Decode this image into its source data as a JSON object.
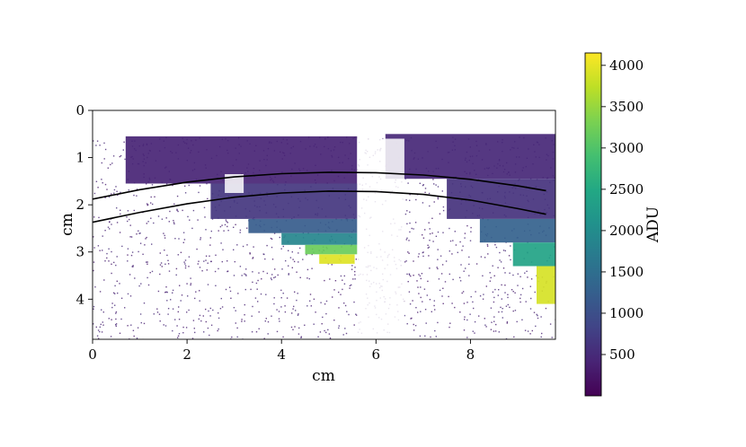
{
  "chart_data": {
    "type": "heatmap",
    "title": "",
    "xlabel": "cm",
    "ylabel": "cm",
    "xlim": [
      0,
      9.8
    ],
    "ylim": [
      4.85,
      0
    ],
    "x_ticks": [
      0,
      2,
      4,
      6,
      8
    ],
    "y_ticks": [
      0,
      1,
      2,
      3,
      4
    ],
    "colorbar": {
      "label": "ADU",
      "colormap": "viridis",
      "range": [
        0,
        4150
      ],
      "ticks": [
        500,
        1000,
        1500,
        2000,
        2500,
        3000,
        3500,
        4000
      ]
    },
    "curves": [
      {
        "color": "#000000",
        "x": [
          0,
          1,
          2,
          3,
          4,
          5,
          6,
          7,
          8,
          9,
          9.6
        ],
        "y": [
          1.88,
          1.68,
          1.52,
          1.41,
          1.34,
          1.31,
          1.32,
          1.37,
          1.46,
          1.6,
          1.7
        ]
      },
      {
        "color": "#000000",
        "x": [
          0,
          1,
          2,
          3,
          4,
          5,
          6,
          7,
          8,
          9,
          9.6
        ],
        "y": [
          2.37,
          2.16,
          1.98,
          1.84,
          1.75,
          1.71,
          1.72,
          1.78,
          1.9,
          2.08,
          2.2
        ]
      }
    ],
    "regions": [
      {
        "name": "upper band left",
        "x": [
          0.7,
          5.6
        ],
        "y": [
          0.55,
          1.55
        ],
        "value": 420
      },
      {
        "name": "upper band right",
        "x": [
          6.2,
          9.8
        ],
        "y": [
          0.5,
          1.45
        ],
        "value": 450
      },
      {
        "name": "sparse gap",
        "x": [
          5.6,
          6.6
        ],
        "y": [
          0.6,
          4.85
        ],
        "value": 60
      },
      {
        "name": "left column",
        "x": [
          2.5,
          5.6
        ],
        "y": [
          1.55,
          2.3
        ],
        "value": 650
      },
      {
        "name": "left step 1",
        "x": [
          3.3,
          5.6
        ],
        "y": [
          2.3,
          2.6
        ],
        "value": 1200
      },
      {
        "name": "left step 2",
        "x": [
          4.0,
          5.6
        ],
        "y": [
          2.6,
          2.85
        ],
        "value": 1900
      },
      {
        "name": "left step 3",
        "x": [
          4.5,
          5.6
        ],
        "y": [
          2.85,
          3.05
        ],
        "value": 3200
      },
      {
        "name": "left peak",
        "x": [
          4.8,
          5.55
        ],
        "y": [
          3.05,
          3.25
        ],
        "value": 3950
      },
      {
        "name": "right column",
        "x": [
          7.5,
          9.8
        ],
        "y": [
          1.45,
          2.3
        ],
        "value": 600
      },
      {
        "name": "right step 1",
        "x": [
          8.2,
          9.8
        ],
        "y": [
          2.3,
          2.8
        ],
        "value": 1300
      },
      {
        "name": "right step 2",
        "x": [
          8.9,
          9.8
        ],
        "y": [
          2.8,
          3.3
        ],
        "value": 2400
      },
      {
        "name": "right peak",
        "x": [
          9.4,
          9.8
        ],
        "y": [
          3.3,
          4.1
        ],
        "value": 3900
      },
      {
        "name": "dark square",
        "x": [
          2.8,
          3.2
        ],
        "y": [
          1.35,
          1.75
        ],
        "value": 20
      }
    ]
  }
}
